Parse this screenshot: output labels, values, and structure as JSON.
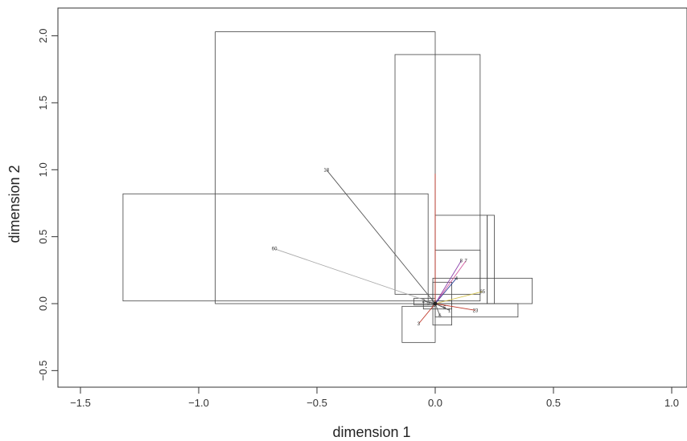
{
  "chart_data": {
    "type": "scatter",
    "title": "",
    "xlabel": "dimension 1",
    "ylabel": "dimension 2",
    "xlim": [
      -1.5,
      1.0
    ],
    "ylim": [
      -0.5,
      2.0
    ],
    "xticks": [
      "−1.5",
      "−1.0",
      "−0.5",
      "0.0",
      "0.5",
      "1.0"
    ],
    "xtick_values": [
      -1.5,
      -1.0,
      -0.5,
      0.0,
      0.5,
      1.0
    ],
    "yticks": [
      "−0.5",
      "0.0",
      "0.5",
      "1.0",
      "1.5",
      "2.0"
    ],
    "ytick_values": [
      -0.5,
      0.0,
      0.5,
      1.0,
      1.5,
      2.0
    ],
    "rectangles": [
      {
        "xmin": -0.93,
        "xmax": 0.0,
        "ymin": 0.0,
        "ymax": 2.03
      },
      {
        "xmin": -0.17,
        "xmax": 0.19,
        "ymin": 0.07,
        "ymax": 1.86
      },
      {
        "xmin": -1.32,
        "xmax": -0.03,
        "ymin": 0.02,
        "ymax": 0.82
      },
      {
        "xmin": 0.0,
        "xmax": 0.22,
        "ymin": 0.0,
        "ymax": 0.66
      },
      {
        "xmin": 0.22,
        "xmax": 0.25,
        "ymin": 0.0,
        "ymax": 0.66
      },
      {
        "xmin": 0.0,
        "xmax": 0.19,
        "ymin": 0.02,
        "ymax": 0.4
      },
      {
        "xmin": -0.01,
        "xmax": 0.41,
        "ymin": 0.0,
        "ymax": 0.19
      },
      {
        "xmin": 0.0,
        "xmax": 0.35,
        "ymin": -0.1,
        "ymax": 0.0
      },
      {
        "xmin": -0.14,
        "xmax": 0.0,
        "ymin": -0.29,
        "ymax": -0.02
      },
      {
        "xmin": -0.01,
        "xmax": 0.07,
        "ymin": -0.16,
        "ymax": 0.16
      },
      {
        "xmin": -0.09,
        "xmax": 0.0,
        "ymin": -0.01,
        "ymax": 0.04
      },
      {
        "xmin": -0.05,
        "xmax": 0.07,
        "ymin": -0.04,
        "ymax": 0.02
      }
    ],
    "segments": [
      {
        "label": "18",
        "x": -0.46,
        "y": 1.0,
        "color": "#555555"
      },
      {
        "label": "60",
        "x": -0.68,
        "y": 0.41,
        "color": "#aaaaaa"
      },
      {
        "label": "",
        "x": 0.0,
        "y": 0.97,
        "color": "#c0392b"
      },
      {
        "label": "8",
        "x": 0.11,
        "y": 0.32,
        "color": "#8e44ad"
      },
      {
        "label": "7",
        "x": 0.13,
        "y": 0.32,
        "color": "#d35aa0"
      },
      {
        "label": "4",
        "x": 0.09,
        "y": 0.19,
        "color": "#2c3e99"
      },
      {
        "label": "65",
        "x": 0.2,
        "y": 0.09,
        "color": "#d4c24a"
      },
      {
        "label": "23",
        "x": 0.17,
        "y": -0.05,
        "color": "#c0392b"
      },
      {
        "label": "3",
        "x": -0.07,
        "y": -0.15,
        "color": "#c0392b"
      },
      {
        "label": "5",
        "x": 0.04,
        "y": -0.03,
        "color": "#555555"
      },
      {
        "label": "1",
        "x": 0.06,
        "y": -0.05,
        "color": "#555555"
      },
      {
        "label": "6",
        "x": 0.02,
        "y": -0.09,
        "color": "#555555"
      },
      {
        "label": "2",
        "x": -0.05,
        "y": 0.02,
        "color": "#555555"
      },
      {
        "label": "9",
        "x": -0.03,
        "y": 0.0,
        "color": "#555555"
      }
    ]
  }
}
